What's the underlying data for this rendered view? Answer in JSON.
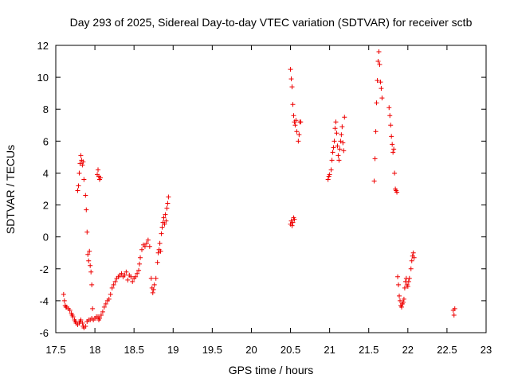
{
  "chart_data": {
    "type": "scatter",
    "title": "Day 293 of 2025, Sidereal Day-to-day VTEC variation (SDTVAR) for receiver sctb",
    "xlabel": "GPS time / hours",
    "ylabel": "SDTVAR / TECUs",
    "xlim": [
      17.5,
      23
    ],
    "ylim": [
      -6,
      12
    ],
    "xticks": [
      17.5,
      18,
      18.5,
      19,
      19.5,
      20,
      20.5,
      21,
      21.5,
      22,
      22.5,
      23
    ],
    "xtick_labels": [
      "17.5",
      "18",
      "18.5",
      "19",
      "19.5",
      "20",
      "20.5",
      "21",
      "21.5",
      "22",
      "22.5",
      "23"
    ],
    "yticks": [
      -6,
      -4,
      -2,
      0,
      2,
      4,
      6,
      8,
      10,
      12
    ],
    "ytick_labels": [
      "-6",
      "-4",
      "-2",
      "0",
      "2",
      "4",
      "6",
      "8",
      "10",
      "12"
    ],
    "grid": false,
    "marker": "+",
    "series_color": "#ee0000",
    "series": [
      {
        "name": "SDTVAR",
        "points": [
          [
            17.6,
            -3.6
          ],
          [
            17.61,
            -4.0
          ],
          [
            17.62,
            -4.3
          ],
          [
            17.63,
            -4.4
          ],
          [
            17.64,
            -4.4
          ],
          [
            17.66,
            -4.5
          ],
          [
            17.68,
            -4.6
          ],
          [
            17.7,
            -4.8
          ],
          [
            17.71,
            -4.9
          ],
          [
            17.72,
            -5.0
          ],
          [
            17.74,
            -5.2
          ],
          [
            17.75,
            -5.3
          ],
          [
            17.76,
            -5.4
          ],
          [
            17.78,
            -5.5
          ],
          [
            17.8,
            -5.4
          ],
          [
            17.81,
            -5.3
          ],
          [
            17.82,
            -5.2
          ],
          [
            17.84,
            -5.4
          ],
          [
            17.85,
            -5.6
          ],
          [
            17.86,
            -5.7
          ],
          [
            17.88,
            -5.6
          ],
          [
            17.9,
            -5.3
          ],
          [
            17.92,
            -5.2
          ],
          [
            17.94,
            -5.2
          ],
          [
            17.96,
            -5.1
          ],
          [
            17.98,
            -5.2
          ],
          [
            18.0,
            -5.1
          ],
          [
            18.02,
            -5.0
          ],
          [
            18.04,
            -5.0
          ],
          [
            18.05,
            -5.2
          ],
          [
            18.06,
            -5.1
          ],
          [
            18.08,
            -4.9
          ],
          [
            18.1,
            -4.7
          ],
          [
            18.12,
            -4.4
          ],
          [
            18.14,
            -4.2
          ],
          [
            18.16,
            -4.0
          ],
          [
            18.18,
            -3.9
          ],
          [
            18.2,
            -3.6
          ],
          [
            18.22,
            -3.2
          ],
          [
            18.24,
            -3.0
          ],
          [
            18.26,
            -2.8
          ],
          [
            18.28,
            -2.6
          ],
          [
            18.3,
            -2.5
          ],
          [
            18.32,
            -2.4
          ],
          [
            18.34,
            -2.3
          ],
          [
            18.36,
            -2.5
          ],
          [
            18.38,
            -2.4
          ],
          [
            18.4,
            -2.2
          ],
          [
            18.42,
            -2.7
          ],
          [
            18.44,
            -2.4
          ],
          [
            18.46,
            -2.5
          ],
          [
            18.48,
            -2.8
          ],
          [
            18.5,
            -2.6
          ],
          [
            18.52,
            -2.5
          ],
          [
            18.54,
            -2.3
          ],
          [
            18.56,
            -2.1
          ],
          [
            18.57,
            -1.7
          ],
          [
            18.58,
            -1.3
          ],
          [
            18.6,
            -0.8
          ],
          [
            18.62,
            -0.5
          ],
          [
            18.64,
            -0.6
          ],
          [
            18.66,
            -0.4
          ],
          [
            18.68,
            -0.2
          ],
          [
            18.7,
            -0.6
          ],
          [
            18.72,
            -2.6
          ],
          [
            18.73,
            -3.2
          ],
          [
            18.74,
            -3.5
          ],
          [
            18.75,
            -3.3
          ],
          [
            18.76,
            -3.0
          ],
          [
            18.78,
            -2.6
          ],
          [
            18.8,
            -1.6
          ],
          [
            18.81,
            -1.0
          ],
          [
            18.82,
            -0.8
          ],
          [
            18.83,
            -0.4
          ],
          [
            18.84,
            -0.9
          ],
          [
            18.85,
            0.2
          ],
          [
            18.86,
            0.6
          ],
          [
            18.87,
            0.9
          ],
          [
            18.88,
            1.2
          ],
          [
            18.89,
            0.8
          ],
          [
            18.9,
            1.4
          ],
          [
            18.91,
            1.0
          ],
          [
            18.92,
            1.8
          ],
          [
            18.93,
            2.1
          ],
          [
            18.94,
            2.5
          ],
          [
            17.78,
            2.9
          ],
          [
            17.79,
            3.2
          ],
          [
            17.8,
            4.0
          ],
          [
            17.81,
            4.6
          ],
          [
            17.82,
            5.1
          ],
          [
            17.83,
            4.8
          ],
          [
            17.84,
            4.5
          ],
          [
            17.85,
            4.7
          ],
          [
            17.86,
            3.6
          ],
          [
            17.88,
            2.6
          ],
          [
            17.89,
            1.7
          ],
          [
            17.9,
            0.3
          ],
          [
            17.91,
            -1.1
          ],
          [
            17.92,
            -1.5
          ],
          [
            17.93,
            -0.9
          ],
          [
            17.94,
            -1.8
          ],
          [
            17.95,
            -2.2
          ],
          [
            17.96,
            -3.0
          ],
          [
            17.97,
            -4.5
          ],
          [
            18.03,
            3.9
          ],
          [
            18.04,
            4.2
          ],
          [
            18.05,
            3.8
          ],
          [
            18.06,
            3.6
          ],
          [
            18.07,
            3.7
          ],
          [
            20.5,
            10.5
          ],
          [
            20.51,
            9.9
          ],
          [
            20.52,
            9.4
          ],
          [
            20.53,
            8.3
          ],
          [
            20.54,
            7.6
          ],
          [
            20.55,
            7.2
          ],
          [
            20.56,
            7.0
          ],
          [
            20.57,
            7.3
          ],
          [
            20.58,
            6.6
          ],
          [
            20.6,
            6.0
          ],
          [
            20.61,
            6.4
          ],
          [
            20.62,
            7.2
          ],
          [
            20.63,
            7.2
          ],
          [
            20.5,
            0.8
          ],
          [
            20.51,
            1.0
          ],
          [
            20.52,
            0.7
          ],
          [
            20.53,
            0.9
          ],
          [
            20.54,
            1.2
          ],
          [
            20.55,
            1.1
          ],
          [
            20.98,
            3.6
          ],
          [
            20.99,
            3.8
          ],
          [
            21.0,
            3.9
          ],
          [
            21.02,
            4.2
          ],
          [
            21.03,
            4.8
          ],
          [
            21.04,
            5.3
          ],
          [
            21.05,
            5.6
          ],
          [
            21.06,
            6.0
          ],
          [
            21.07,
            6.8
          ],
          [
            21.08,
            7.2
          ],
          [
            21.09,
            6.5
          ],
          [
            21.1,
            5.7
          ],
          [
            21.11,
            5.1
          ],
          [
            21.12,
            4.8
          ],
          [
            21.13,
            5.5
          ],
          [
            21.14,
            6.0
          ],
          [
            21.15,
            6.4
          ],
          [
            21.16,
            6.9
          ],
          [
            21.17,
            5.9
          ],
          [
            21.18,
            5.4
          ],
          [
            21.19,
            7.5
          ],
          [
            21.57,
            3.5
          ],
          [
            21.58,
            4.9
          ],
          [
            21.59,
            6.6
          ],
          [
            21.6,
            8.4
          ],
          [
            21.61,
            9.8
          ],
          [
            21.62,
            11.0
          ],
          [
            21.63,
            11.6
          ],
          [
            21.64,
            10.8
          ],
          [
            21.65,
            9.7
          ],
          [
            21.66,
            9.3
          ],
          [
            21.67,
            8.7
          ],
          [
            21.76,
            8.1
          ],
          [
            21.77,
            7.6
          ],
          [
            21.78,
            7.0
          ],
          [
            21.79,
            6.3
          ],
          [
            21.8,
            5.8
          ],
          [
            21.81,
            5.3
          ],
          [
            21.82,
            5.5
          ],
          [
            21.83,
            4.0
          ],
          [
            21.84,
            3.0
          ],
          [
            21.85,
            2.9
          ],
          [
            21.86,
            2.8
          ],
          [
            21.87,
            -2.5
          ],
          [
            21.88,
            -3.0
          ],
          [
            21.89,
            -3.7
          ],
          [
            21.9,
            -4.0
          ],
          [
            21.91,
            -4.3
          ],
          [
            21.92,
            -4.4
          ],
          [
            21.93,
            -4.2
          ],
          [
            21.94,
            -4.1
          ],
          [
            21.95,
            -3.9
          ],
          [
            21.96,
            -3.2
          ],
          [
            21.97,
            -2.8
          ],
          [
            21.98,
            -2.6
          ],
          [
            21.99,
            -3.0
          ],
          [
            22.0,
            -3.1
          ],
          [
            22.01,
            -2.8
          ],
          [
            22.02,
            -2.6
          ],
          [
            22.04,
            -2.0
          ],
          [
            22.05,
            -1.5
          ],
          [
            22.06,
            -1.2
          ],
          [
            22.07,
            -1.0
          ],
          [
            22.08,
            -1.3
          ],
          [
            22.58,
            -4.6
          ],
          [
            22.59,
            -4.9
          ],
          [
            22.6,
            -4.5
          ]
        ]
      }
    ]
  }
}
